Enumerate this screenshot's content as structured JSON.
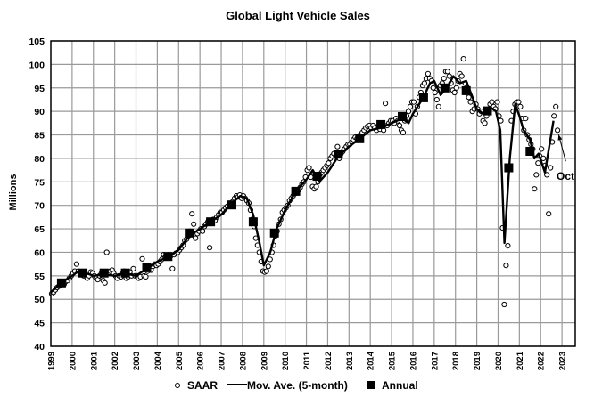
{
  "chart_data": {
    "type": "line",
    "title": "Global Light Vehicle Sales",
    "xlabel": "",
    "ylabel": "Millions",
    "xlim": [
      1999,
      2023.6
    ],
    "ylim": [
      40,
      105
    ],
    "grid": true,
    "y_ticks": [
      "40",
      "45",
      "50",
      "55",
      "60",
      "65",
      "70",
      "75",
      "80",
      "85",
      "90",
      "95",
      "100",
      "105"
    ],
    "x_ticks": [
      "1999",
      "2000",
      "2001",
      "2002",
      "2003",
      "2004",
      "2005",
      "2006",
      "2007",
      "2008",
      "2009",
      "2010",
      "2011",
      "2012",
      "2013",
      "2014",
      "2015",
      "2016",
      "2017",
      "2018",
      "2019",
      "2020",
      "2021",
      "2022",
      "2023"
    ],
    "legend": {
      "placement": "bottom",
      "entries": [
        {
          "label": "SAAR",
          "marker": "open-circle"
        },
        {
          "label": "Mov. Ave. (5-month)",
          "marker": "line"
        },
        {
          "label": "Annual",
          "marker": "filled-square"
        }
      ]
    },
    "annotation": {
      "text": "Oct",
      "points_to": {
        "x": 2022.8,
        "y": 86
      }
    },
    "series": [
      {
        "name": "SAAR",
        "type": "scatter",
        "start_year": 1999,
        "frequency": "monthly",
        "values": [
          51.2,
          51.5,
          52,
          52.5,
          52.8,
          53,
          53.5,
          53.2,
          53.8,
          54,
          54.5,
          55,
          55.5,
          56,
          57.5,
          56,
          55.8,
          55.5,
          55,
          55.2,
          54.5,
          55,
          55.8,
          55.5,
          55,
          54.5,
          54.2,
          55,
          55.5,
          54,
          53.5,
          60,
          55.5,
          56,
          56.2,
          55.5,
          55,
          54.5,
          55,
          54.8,
          55.5,
          56,
          54.5,
          54.8,
          55.8,
          55,
          56.5,
          55,
          55,
          54.5,
          54.8,
          58.6,
          55,
          54.8,
          56,
          56.5,
          56.2,
          57,
          57.5,
          57.2,
          57.5,
          58,
          58.5,
          59.5,
          59,
          58.8,
          59.5,
          59.2,
          56.5,
          59.5,
          59.8,
          60,
          60.5,
          61,
          61.5,
          62.5,
          62.8,
          63.5,
          64.5,
          68.2,
          66,
          63,
          64,
          64.5,
          65,
          64.5,
          65.5,
          66,
          66.5,
          61,
          66.2,
          67,
          66.8,
          67.5,
          68,
          68.5,
          68.5,
          69,
          69.5,
          69.8,
          70,
          70.5,
          70.8,
          71.5,
          72,
          71.8,
          72.2,
          71.5,
          72,
          71.5,
          71,
          70.5,
          69,
          67,
          65.5,
          63,
          61.5,
          60,
          58,
          56,
          55.8,
          56,
          57,
          58.5,
          60,
          61.5,
          63.5,
          64.5,
          66,
          67,
          68.5,
          69,
          69.5,
          70,
          71,
          71.5,
          72,
          72.5,
          73,
          73.2,
          73.8,
          74.5,
          75,
          76,
          77.5,
          78,
          76,
          74,
          73.5,
          74,
          75,
          76.5,
          77,
          77.5,
          78,
          78.5,
          79,
          80,
          80.5,
          81,
          80.5,
          82.5,
          80,
          81,
          81.5,
          82,
          82.5,
          83,
          83,
          83.5,
          84,
          84.5,
          84.2,
          84.8,
          85,
          85.5,
          86,
          86.5,
          86.8,
          87,
          86.5,
          87,
          86.5,
          86,
          87,
          86.2,
          87.5,
          86,
          91.7,
          87,
          87.5,
          88,
          88,
          87.5,
          88.5,
          88,
          87,
          86,
          85.5,
          88,
          89,
          90,
          91,
          92,
          92,
          89.5,
          91,
          93,
          94,
          95.5,
          96,
          97,
          98,
          97,
          96.5,
          95,
          94,
          92.5,
          91,
          95.5,
          96,
          97,
          98.5,
          98.5,
          97.5,
          96,
          94.5,
          94,
          95,
          96.5,
          98,
          97.5,
          101.2,
          96,
          95,
          93,
          92,
          90,
          90.5,
          91.5,
          90.5,
          89.5,
          90,
          88,
          87.5,
          89,
          90,
          91.5,
          92,
          91,
          90.5,
          92,
          89,
          88,
          65.2,
          48.9,
          57.2,
          61.4,
          78,
          88,
          90,
          91.5,
          92,
          92,
          91,
          88.5,
          86,
          88.5,
          85,
          84,
          83,
          82,
          73.5,
          76.5,
          79,
          80.5,
          82,
          80,
          78.5,
          76.5,
          68.2,
          78,
          83.5,
          89,
          91,
          86
        ]
      },
      {
        "name": "Mov. Ave. (5-month)",
        "type": "line",
        "x": [
          1999.0,
          1999.5,
          2000.0,
          2000.3,
          2000.7,
          2001.0,
          2001.5,
          2002.0,
          2002.5,
          2003.0,
          2003.5,
          2004.0,
          2004.5,
          2005.0,
          2005.5,
          2006.0,
          2006.5,
          2007.0,
          2007.5,
          2007.9,
          2008.2,
          2008.5,
          2008.8,
          2009.0,
          2009.3,
          2009.6,
          2010.0,
          2010.5,
          2011.0,
          2011.3,
          2011.6,
          2012.0,
          2012.5,
          2013.0,
          2013.5,
          2014.0,
          2014.5,
          2015.0,
          2015.5,
          2015.8,
          2016.0,
          2016.5,
          2016.8,
          2017.0,
          2017.3,
          2017.6,
          2017.9,
          2018.2,
          2018.5,
          2018.8,
          2019.0,
          2019.3,
          2019.6,
          2019.9,
          2020.1,
          2020.3,
          2020.55,
          2020.8,
          2021.0,
          2021.2,
          2021.5,
          2021.7,
          2021.9,
          2022.2,
          2022.6
        ],
        "values": [
          51.5,
          53.5,
          55,
          56,
          55.5,
          55,
          55.3,
          55,
          55.5,
          55,
          56.5,
          58,
          59,
          60.5,
          63.5,
          65,
          66.5,
          68,
          70.5,
          72,
          71.5,
          68,
          62,
          57.2,
          60,
          65,
          69,
          73,
          75.5,
          77.5,
          75,
          77,
          80.5,
          82.5,
          84.2,
          86,
          86.5,
          87.5,
          88.5,
          87.5,
          89.5,
          93,
          96,
          96.5,
          93.5,
          95,
          97.5,
          96,
          96.5,
          93,
          90.5,
          89.5,
          91,
          90,
          86,
          62,
          80,
          91.5,
          89,
          86,
          84,
          80,
          81,
          77,
          88
        ]
      },
      {
        "name": "Annual",
        "type": "scatter",
        "x": [
          1999.5,
          2000.5,
          2001.5,
          2002.5,
          2003.5,
          2004.5,
          2005.5,
          2006.5,
          2007.5,
          2008.5,
          2009.5,
          2010.5,
          2011.5,
          2012.5,
          2013.5,
          2014.5,
          2015.5,
          2016.5,
          2017.5,
          2018.5,
          2019.5,
          2020.5,
          2021.5
        ],
        "values": [
          53.5,
          55.6,
          55.6,
          55.6,
          56.7,
          59.1,
          64.1,
          66.5,
          70.1,
          66.5,
          64.1,
          73,
          76.2,
          80.9,
          84.2,
          87.2,
          88.9,
          92.9,
          95,
          94.4,
          90.1,
          78,
          81.5
        ]
      }
    ]
  }
}
